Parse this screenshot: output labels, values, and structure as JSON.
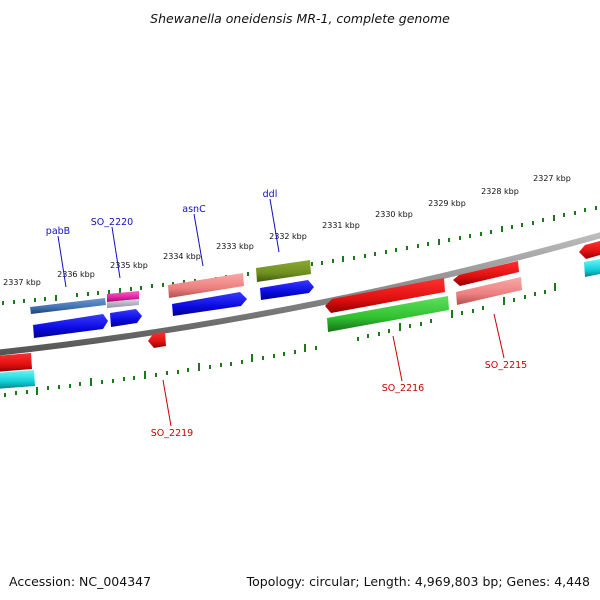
{
  "title": "Shewanella oneidensis MR-1, complete genome",
  "footer": {
    "accession": "Accession: NC_004347",
    "topology": "Topology: circular; Length: 4,969,803 bp; Genes: 4,448"
  },
  "colors": {
    "forward_label": "#1010c0",
    "reverse_label": "#cc0000",
    "tick": "#1a7a1a",
    "backbone": "#888888",
    "blue": "#0a0ae0",
    "red": "#e01010",
    "pink": "#ee8080",
    "green": "#30c030",
    "olive": "#6f8f1f",
    "cyan": "#10d0d8",
    "steel": "#4070b0",
    "magenta": "#e020a0"
  },
  "scale_labels": [
    "2337 kbp",
    "2336 kbp",
    "2335 kbp",
    "2334 kbp",
    "2333 kbp",
    "2332 kbp",
    "2331 kbp",
    "2330 kbp",
    "2329 kbp",
    "2328 kbp",
    "2327 kbp"
  ],
  "forward_gene_labels": [
    "pabB",
    "SO_2220",
    "asnC",
    "ddl"
  ],
  "reverse_gene_labels": [
    "SO_2219",
    "SO_2216",
    "SO_2215"
  ],
  "features": [
    {
      "name": "pabB",
      "strand": "forward",
      "color": "steel"
    },
    {
      "name": "SO_2220",
      "strand": "forward",
      "color": "magenta"
    },
    {
      "name": "asnC",
      "strand": "forward",
      "color": "pink"
    },
    {
      "name": "ddl",
      "strand": "forward",
      "color": "olive"
    },
    {
      "name": "SO_2219",
      "strand": "reverse",
      "color": "red"
    },
    {
      "name": "SO_2216",
      "strand": "reverse",
      "color": "red"
    },
    {
      "name": "SO_2215",
      "strand": "reverse",
      "color": "red"
    }
  ]
}
